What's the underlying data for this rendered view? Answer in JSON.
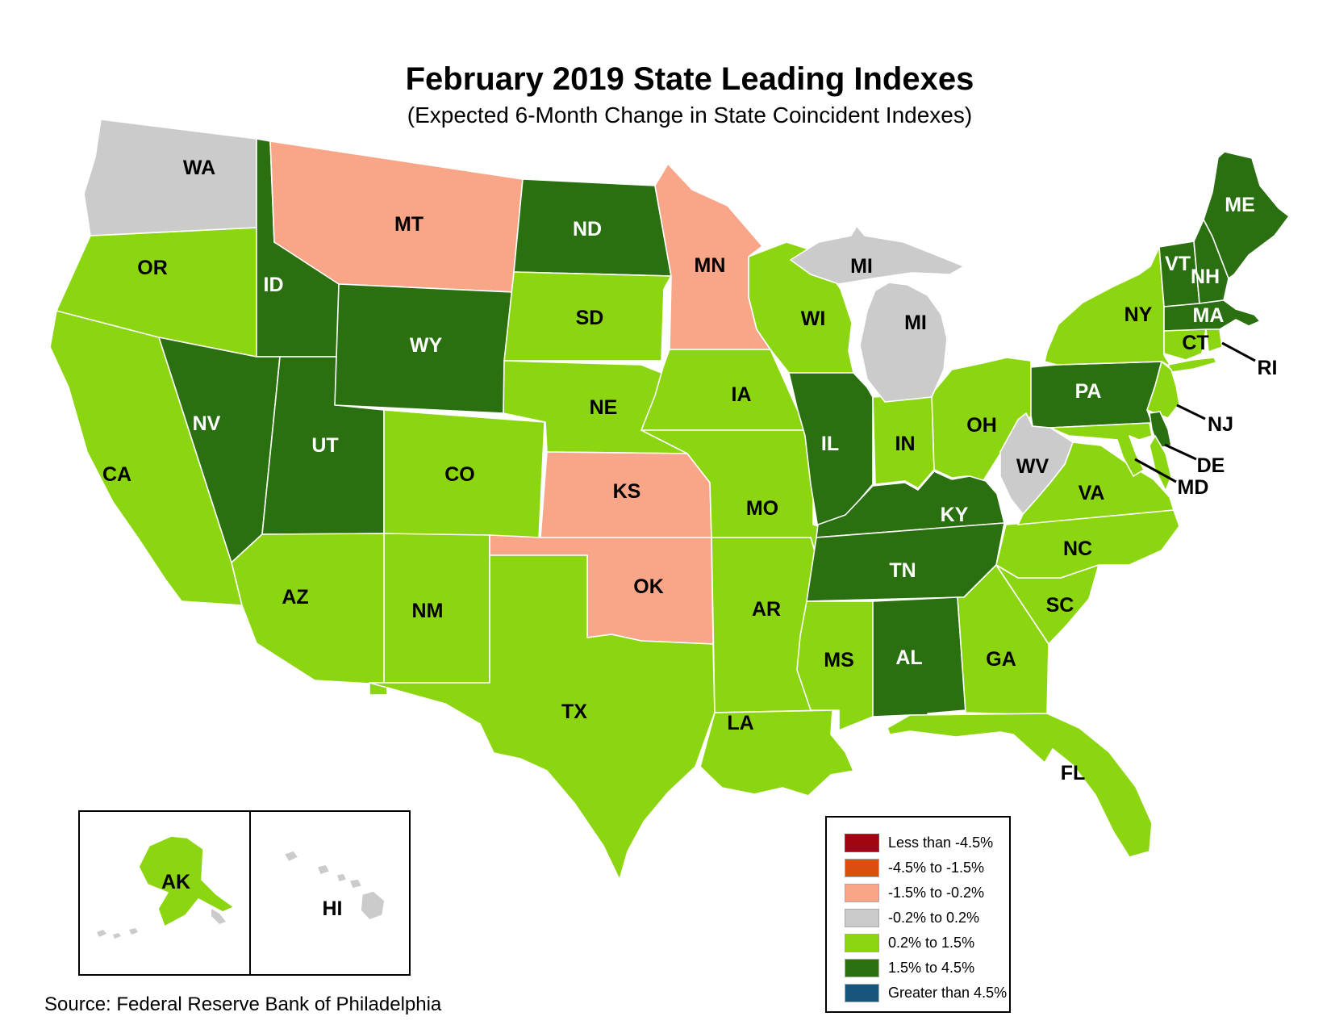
{
  "title": "February 2019 State Leading Indexes",
  "subtitle": "(Expected 6-Month Change in State Coincident Indexes)",
  "source_note": "Source: Federal Reserve Bank of Philadelphia",
  "legend": {
    "items": [
      {
        "label": "Less than -4.5%",
        "color": "#A00612",
        "swatch_border": "#4353C9"
      },
      {
        "label": "-4.5% to -1.5%",
        "color": "#DC4E10",
        "swatch_border": "#A9A9A9"
      },
      {
        "label": "-1.5% to -0.2%",
        "color": "#F8A588",
        "swatch_border": "#A9A9A9"
      },
      {
        "label": "-0.2% to 0.2%",
        "color": "#CBCBCB",
        "swatch_border": "#A9A9A9"
      },
      {
        "label": "0.2% to 1.5%",
        "color": "#8CD611",
        "swatch_border": "#A9A9A9"
      },
      {
        "label": "1.5% to 4.5%",
        "color": "#2A7011",
        "swatch_border": "#A9A9A9"
      },
      {
        "label": "Greater than 4.5%",
        "color": "#16567C",
        "swatch_border": "#A9A9A9"
      }
    ]
  },
  "map": {
    "states": [
      {
        "code": "WA",
        "category": 3,
        "range": "-0.2% to 0.2%",
        "label_style": "dark"
      },
      {
        "code": "OR",
        "category": 4,
        "range": "0.2% to 1.5%",
        "label_style": "dark"
      },
      {
        "code": "CA",
        "category": 4,
        "range": "0.2% to 1.5%",
        "label_style": "dark"
      },
      {
        "code": "ID",
        "category": 5,
        "range": "1.5% to 4.5%",
        "label_style": "light"
      },
      {
        "code": "NV",
        "category": 5,
        "range": "1.5% to 4.5%",
        "label_style": "light"
      },
      {
        "code": "UT",
        "category": 5,
        "range": "1.5% to 4.5%",
        "label_style": "light"
      },
      {
        "code": "MT",
        "category": 2,
        "range": "-1.5% to -0.2%",
        "label_style": "dark"
      },
      {
        "code": "WY",
        "category": 5,
        "range": "1.5% to 4.5%",
        "label_style": "light"
      },
      {
        "code": "CO",
        "category": 4,
        "range": "0.2% to 1.5%",
        "label_style": "dark"
      },
      {
        "code": "AZ",
        "category": 4,
        "range": "0.2% to 1.5%",
        "label_style": "dark"
      },
      {
        "code": "NM",
        "category": 4,
        "range": "0.2% to 1.5%",
        "label_style": "dark"
      },
      {
        "code": "ND",
        "category": 5,
        "range": "1.5% to 4.5%",
        "label_style": "light"
      },
      {
        "code": "SD",
        "category": 4,
        "range": "0.2% to 1.5%",
        "label_style": "dark"
      },
      {
        "code": "NE",
        "category": 4,
        "range": "0.2% to 1.5%",
        "label_style": "dark"
      },
      {
        "code": "KS",
        "category": 2,
        "range": "-1.5% to -0.2%",
        "label_style": "dark"
      },
      {
        "code": "OK",
        "category": 2,
        "range": "-1.5% to -0.2%",
        "label_style": "dark"
      },
      {
        "code": "TX",
        "category": 4,
        "range": "0.2% to 1.5%",
        "label_style": "dark"
      },
      {
        "code": "MN",
        "category": 2,
        "range": "-1.5% to -0.2%",
        "label_style": "dark"
      },
      {
        "code": "IA",
        "category": 4,
        "range": "0.2% to 1.5%",
        "label_style": "dark"
      },
      {
        "code": "MO",
        "category": 4,
        "range": "0.2% to 1.5%",
        "label_style": "dark"
      },
      {
        "code": "AR",
        "category": 4,
        "range": "0.2% to 1.5%",
        "label_style": "dark"
      },
      {
        "code": "LA",
        "category": 4,
        "range": "0.2% to 1.5%",
        "label_style": "dark"
      },
      {
        "code": "WI",
        "category": 4,
        "range": "0.2% to 1.5%",
        "label_style": "dark"
      },
      {
        "code": "IL",
        "category": 5,
        "range": "1.5% to 4.5%",
        "label_style": "light"
      },
      {
        "code": "IN",
        "category": 4,
        "range": "0.2% to 1.5%",
        "label_style": "dark"
      },
      {
        "code": "OH",
        "category": 4,
        "range": "0.2% to 1.5%",
        "label_style": "dark"
      },
      {
        "code": "MI",
        "category": 3,
        "range": "-0.2% to 0.2%",
        "label_style": "dark"
      },
      {
        "code": "KY",
        "category": 5,
        "range": "1.5% to 4.5%",
        "label_style": "light"
      },
      {
        "code": "TN",
        "category": 5,
        "range": "1.5% to 4.5%",
        "label_style": "light"
      },
      {
        "code": "MS",
        "category": 4,
        "range": "0.2% to 1.5%",
        "label_style": "dark"
      },
      {
        "code": "AL",
        "category": 5,
        "range": "1.5% to 4.5%",
        "label_style": "light"
      },
      {
        "code": "GA",
        "category": 4,
        "range": "0.2% to 1.5%",
        "label_style": "dark"
      },
      {
        "code": "FL",
        "category": 4,
        "range": "0.2% to 1.5%",
        "label_style": "dark"
      },
      {
        "code": "SC",
        "category": 4,
        "range": "0.2% to 1.5%",
        "label_style": "dark"
      },
      {
        "code": "NC",
        "category": 4,
        "range": "0.2% to 1.5%",
        "label_style": "dark"
      },
      {
        "code": "VA",
        "category": 4,
        "range": "0.2% to 1.5%",
        "label_style": "dark"
      },
      {
        "code": "WV",
        "category": 3,
        "range": "-0.2% to 0.2%",
        "label_style": "dark"
      },
      {
        "code": "PA",
        "category": 5,
        "range": "1.5% to 4.5%",
        "label_style": "light"
      },
      {
        "code": "NY",
        "category": 4,
        "range": "0.2% to 1.5%",
        "label_style": "dark"
      },
      {
        "code": "VT",
        "category": 5,
        "range": "1.5% to 4.5%",
        "label_style": "light"
      },
      {
        "code": "NH",
        "category": 5,
        "range": "1.5% to 4.5%",
        "label_style": "light"
      },
      {
        "code": "ME",
        "category": 5,
        "range": "1.5% to 4.5%",
        "label_style": "light"
      },
      {
        "code": "MA",
        "category": 5,
        "range": "1.5% to 4.5%",
        "label_style": "light"
      },
      {
        "code": "CT",
        "category": 4,
        "range": "0.2% to 1.5%",
        "label_style": "dark"
      },
      {
        "code": "RI",
        "category": 4,
        "range": "0.2% to 1.5%",
        "label_style": "dark",
        "callout": true
      },
      {
        "code": "NJ",
        "category": 4,
        "range": "0.2% to 1.5%",
        "label_style": "dark",
        "callout": true
      },
      {
        "code": "DE",
        "category": 5,
        "range": "1.5% to 4.5%",
        "label_style": "dark",
        "callout": true
      },
      {
        "code": "MD",
        "category": 4,
        "range": "0.2% to 1.5%",
        "label_style": "dark",
        "callout": true
      },
      {
        "code": "AK",
        "category": 4,
        "range": "0.2% to 1.5%",
        "label_style": "dark"
      },
      {
        "code": "HI",
        "category": 3,
        "range": "-0.2% to 0.2%",
        "label_style": "dark"
      }
    ]
  }
}
